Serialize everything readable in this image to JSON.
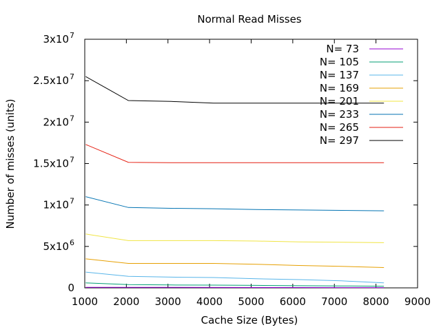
{
  "chart_data": {
    "type": "line",
    "title": "Normal Read Misses",
    "xlabel": "Cache Size (Bytes)",
    "ylabel": "Number of misses (units)",
    "xlim": [
      1000,
      9000
    ],
    "ylim": [
      0,
      30000000
    ],
    "x_ticks": [
      {
        "value": 1000,
        "label": "1000"
      },
      {
        "value": 2000,
        "label": "2000"
      },
      {
        "value": 3000,
        "label": "3000"
      },
      {
        "value": 4000,
        "label": "4000"
      },
      {
        "value": 5000,
        "label": "5000"
      },
      {
        "value": 6000,
        "label": "6000"
      },
      {
        "value": 7000,
        "label": "7000"
      },
      {
        "value": 8000,
        "label": "8000"
      },
      {
        "value": 9000,
        "label": "9000"
      }
    ],
    "y_ticks": [
      {
        "value": 0,
        "mantissa": "0",
        "exponent": ""
      },
      {
        "value": 5000000,
        "mantissa": "5x10",
        "exponent": "6"
      },
      {
        "value": 10000000,
        "mantissa": "1x10",
        "exponent": "7"
      },
      {
        "value": 15000000,
        "mantissa": "1.5x10",
        "exponent": "7"
      },
      {
        "value": 20000000,
        "mantissa": "2x10",
        "exponent": "7"
      },
      {
        "value": 25000000,
        "mantissa": "2.5x10",
        "exponent": "7"
      },
      {
        "value": 30000000,
        "mantissa": "3x10",
        "exponent": "7"
      }
    ],
    "grid": false,
    "legend_position": "top-right",
    "x": [
      1024,
      2048,
      3072,
      4096,
      5120,
      6144,
      7168,
      8192
    ],
    "series": [
      {
        "name": "N= 73",
        "color": "#9400d3",
        "values": [
          70000,
          60000,
          55000,
          50000,
          45000,
          40000,
          35000,
          30000
        ]
      },
      {
        "name": "N= 105",
        "color": "#009e73",
        "values": [
          600000,
          400000,
          350000,
          330000,
          300000,
          260000,
          230000,
          200000
        ]
      },
      {
        "name": "N= 137",
        "color": "#56b4e9",
        "values": [
          1900000,
          1400000,
          1300000,
          1250000,
          1100000,
          1000000,
          850000,
          600000
        ]
      },
      {
        "name": "N= 169",
        "color": "#e69f00",
        "values": [
          3500000,
          2950000,
          2950000,
          2950000,
          2850000,
          2700000,
          2600000,
          2450000
        ]
      },
      {
        "name": "N= 201",
        "color": "#f0e442",
        "values": [
          6500000,
          5700000,
          5700000,
          5700000,
          5650000,
          5550000,
          5500000,
          5450000
        ]
      },
      {
        "name": "N= 233",
        "color": "#0072b2",
        "values": [
          11000000,
          9700000,
          9600000,
          9550000,
          9450000,
          9400000,
          9350000,
          9300000
        ]
      },
      {
        "name": "N= 265",
        "color": "#e51e10",
        "values": [
          17300000,
          15150000,
          15100000,
          15100000,
          15100000,
          15100000,
          15100000,
          15100000
        ]
      },
      {
        "name": "N= 297",
        "color": "#000000",
        "values": [
          25500000,
          22600000,
          22500000,
          22300000,
          22300000,
          22300000,
          22300000,
          22300000
        ]
      }
    ]
  }
}
